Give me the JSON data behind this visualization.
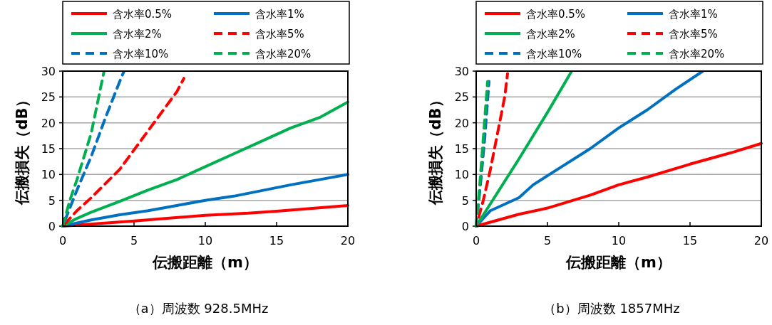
{
  "chart_data": [
    {
      "type": "line",
      "xlabel": "伝搬距離（m）",
      "ylabel": "伝搬損失（dB）",
      "xlim": [
        0,
        20
      ],
      "ylim": [
        0,
        30
      ],
      "xticks": [
        0,
        5,
        10,
        15,
        20
      ],
      "yticks": [
        0,
        5,
        10,
        15,
        20,
        25,
        30
      ],
      "grid": "y",
      "legend": "top",
      "annotations": [
        "（a）周波数 928.5MHz"
      ],
      "series": [
        {
          "name": "含水率0.5%",
          "color": "#ff0000",
          "line_style": "solid",
          "x": [
            0,
            5,
            10,
            13,
            15,
            20
          ],
          "values": [
            0,
            1,
            2.1,
            2.5,
            2.9,
            4
          ]
        },
        {
          "name": "含水率1%",
          "color": "#0070c0",
          "line_style": "solid",
          "x": [
            0,
            2,
            4,
            6,
            8,
            10,
            12,
            14,
            16,
            18,
            20
          ],
          "values": [
            0,
            1.2,
            2.2,
            3,
            4,
            5,
            5.8,
            6.9,
            8,
            9,
            10
          ]
        },
        {
          "name": "含水率2%",
          "color": "#00b050",
          "line_style": "solid",
          "x": [
            0,
            1,
            2,
            4,
            6,
            8,
            10,
            12,
            14,
            16,
            18,
            20
          ],
          "values": [
            0,
            1.5,
            2.7,
            4.8,
            7,
            9,
            11.5,
            14,
            16.5,
            19,
            21,
            24
          ]
        },
        {
          "name": "含水率5%",
          "color": "#ff0000",
          "line_style": "dashed",
          "x": [
            0,
            1,
            2,
            4,
            6,
            8,
            8.5
          ],
          "values": [
            0,
            3,
            5.5,
            11,
            18.5,
            26,
            28.6
          ]
        },
        {
          "name": "含水率10%",
          "color": "#0070c0",
          "line_style": "dashed",
          "x": [
            0,
            0.5,
            1,
            2,
            3,
            4,
            4.3
          ],
          "values": [
            0,
            3.5,
            7,
            13.5,
            21,
            28,
            30
          ]
        },
        {
          "name": "含水率20%",
          "color": "#00b050",
          "line_style": "dashed",
          "x": [
            0,
            0.5,
            1,
            2,
            2.9
          ],
          "values": [
            0,
            5,
            9,
            18,
            30
          ]
        }
      ]
    },
    {
      "type": "line",
      "xlabel": "伝搬距離（m）",
      "ylabel": "伝搬損失（dB）",
      "xlim": [
        0,
        20
      ],
      "ylim": [
        0,
        30
      ],
      "xticks": [
        0,
        5,
        10,
        15,
        20
      ],
      "yticks": [
        0,
        5,
        10,
        15,
        20,
        25,
        30
      ],
      "grid": "y",
      "legend": "top",
      "annotations": [
        "（b）周波数 1857MHz"
      ],
      "series": [
        {
          "name": "含水率0.5%",
          "color": "#ff0000",
          "line_style": "solid",
          "x": [
            0,
            3,
            5,
            8,
            10,
            12,
            15,
            18,
            20
          ],
          "values": [
            0,
            2.3,
            3.5,
            6,
            8,
            9.5,
            12,
            14.3,
            16
          ]
        },
        {
          "name": "含水率1%",
          "color": "#0070c0",
          "line_style": "solid",
          "x": [
            0,
            1,
            3,
            4,
            6,
            8,
            10,
            12,
            14,
            15.9
          ],
          "values": [
            0,
            3,
            5.5,
            8,
            11.5,
            15,
            19,
            22.5,
            26.5,
            30
          ]
        },
        {
          "name": "含水率2%",
          "color": "#00b050",
          "line_style": "solid",
          "x": [
            0,
            3,
            5,
            6.7
          ],
          "values": [
            0,
            13,
            22,
            30
          ]
        },
        {
          "name": "含水率5%",
          "color": "#ff0000",
          "line_style": "dashed",
          "x": [
            0,
            0.5,
            1,
            1.5,
            2,
            2.2
          ],
          "values": [
            0,
            5,
            11,
            18,
            25,
            29.5
          ]
        },
        {
          "name": "含水率10%",
          "color": "#0070c0",
          "line_style": "dashed",
          "x": [
            0,
            0.3,
            0.6,
            0.9
          ],
          "values": [
            0,
            8,
            17,
            28
          ]
        },
        {
          "name": "含水率20%",
          "color": "#00b050",
          "line_style": "dashed",
          "x": [
            0,
            0.25,
            0.5,
            0.8
          ],
          "values": [
            0,
            8,
            17,
            28
          ]
        }
      ]
    }
  ]
}
